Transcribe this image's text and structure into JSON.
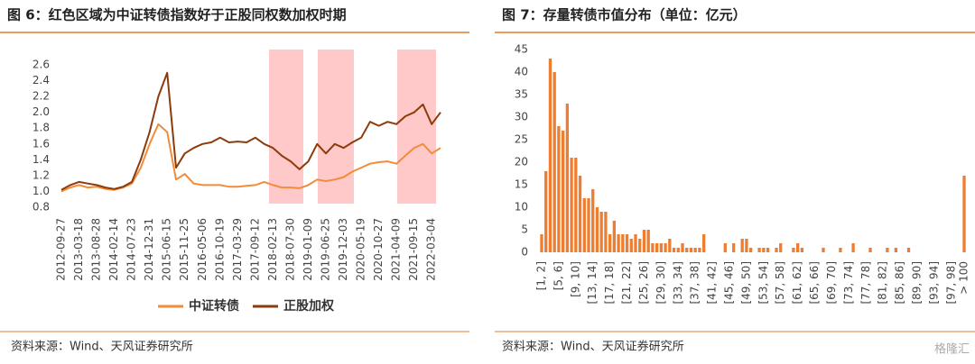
{
  "chart_data": [
    {
      "type": "line",
      "title": "图 6：红色区域为中证转债指数好于正股同权数加权时期",
      "source": "资料来源：Wind、天风证券研究所",
      "categories": [
        "2012-09-27",
        null,
        "2013-03-18",
        null,
        "2013-08-28",
        null,
        "2014-02-14",
        null,
        "2014-07-23",
        null,
        "2014-12-31",
        null,
        "2015-06-15",
        null,
        "2015-11-25",
        null,
        "2016-05-06",
        null,
        "2016-10-19",
        null,
        "2017-03-29",
        null,
        "2017-09-12",
        null,
        "2018-02-13",
        null,
        "2018-07-30",
        null,
        "2019-01-09",
        null,
        "2019-06-25",
        null,
        "2019-12-03",
        null,
        "2020-05-19",
        null,
        "2020-10-27",
        null,
        "2021-04-09",
        null,
        "2021-09-15",
        null,
        "2022-03-04",
        null
      ],
      "series": [
        {
          "name": "中证转债",
          "color": "#f28c3a",
          "values": [
            1.0,
            1.05,
            1.08,
            1.05,
            1.06,
            1.03,
            1.02,
            1.05,
            1.1,
            1.3,
            1.6,
            1.85,
            1.75,
            1.15,
            1.22,
            1.1,
            1.08,
            1.08,
            1.08,
            1.06,
            1.06,
            1.07,
            1.08,
            1.12,
            1.08,
            1.05,
            1.05,
            1.04,
            1.08,
            1.15,
            1.13,
            1.15,
            1.18,
            1.25,
            1.3,
            1.35,
            1.37,
            1.38,
            1.35,
            1.45,
            1.55,
            1.6,
            1.48,
            1.55
          ]
        },
        {
          "name": "正股加权",
          "color": "#8c3b0c",
          "values": [
            1.02,
            1.08,
            1.12,
            1.1,
            1.08,
            1.05,
            1.03,
            1.06,
            1.12,
            1.4,
            1.75,
            2.2,
            2.5,
            1.3,
            1.48,
            1.55,
            1.6,
            1.62,
            1.68,
            1.62,
            1.63,
            1.62,
            1.68,
            1.6,
            1.55,
            1.45,
            1.38,
            1.28,
            1.38,
            1.6,
            1.48,
            1.6,
            1.55,
            1.62,
            1.68,
            1.88,
            1.83,
            1.88,
            1.85,
            1.95,
            2.0,
            2.1,
            1.85,
            2.0
          ]
        }
      ],
      "ylim": [
        0.8,
        2.6
      ],
      "yticks": [
        {
          "value": 0.8,
          "label": "0.8"
        },
        {
          "value": 1,
          "label": "1.0"
        },
        1.2,
        1.4,
        1.6,
        1.8,
        {
          "value": 2,
          "label": "2.0"
        },
        2.2,
        2.4,
        2.6
      ],
      "legend": "bottom"
    },
    {
      "type": "bar",
      "title": "图 7：存量转债市值分布（单位：亿元）",
      "source": "资料来源：Wind、天风证券研究所",
      "color": "#ed7d31",
      "categories": [
        "[1, 2]",
        null,
        null,
        null,
        "[5, 6]",
        null,
        null,
        null,
        "[9, 10]",
        null,
        null,
        null,
        "[13, 14]",
        null,
        null,
        null,
        "[17, 18]",
        null,
        null,
        null,
        "[21, 22]",
        null,
        null,
        null,
        "[25, 26]",
        null,
        null,
        null,
        "[29, 30]",
        null,
        null,
        null,
        "[33, 34]",
        null,
        null,
        null,
        "[37, 38]",
        null,
        null,
        null,
        "[41, 42]",
        null,
        null,
        null,
        "[45, 46]",
        null,
        null,
        null,
        "[49, 50]",
        null,
        null,
        null,
        "[53, 54]",
        null,
        null,
        null,
        "[57, 58]",
        null,
        null,
        null,
        "[61, 62]",
        null,
        null,
        null,
        "[65, 66]",
        null,
        null,
        null,
        "[69, 70]",
        null,
        null,
        null,
        "[73, 74]",
        null,
        null,
        null,
        "[77, 78]",
        null,
        null,
        null,
        "[81, 82]",
        null,
        null,
        null,
        "[85, 86]",
        null,
        null,
        null,
        "[89, 90]",
        null,
        null,
        null,
        "[93, 94]",
        null,
        null,
        null,
        "[97, 98]",
        null,
        null,
        "> 100"
      ],
      "values": [
        4,
        18,
        43,
        40,
        28,
        27,
        33,
        21,
        21,
        17,
        12,
        12,
        14,
        10,
        9,
        9,
        4,
        7,
        4,
        4,
        4,
        3,
        4,
        3,
        5,
        5,
        2,
        2,
        2,
        2,
        3,
        1,
        1,
        2,
        1,
        1,
        1,
        1,
        4,
        0,
        0,
        0,
        0,
        2,
        0,
        2,
        0,
        3,
        3,
        1,
        0,
        1,
        1,
        1,
        0,
        1,
        2,
        0,
        0,
        1,
        2,
        1,
        0,
        0,
        0,
        0,
        1,
        0,
        0,
        0,
        1,
        0,
        0,
        2,
        0,
        0,
        0,
        1,
        0,
        0,
        0,
        1,
        0,
        1,
        0,
        0,
        1,
        0,
        0,
        0,
        0,
        0,
        0,
        0,
        0,
        0,
        0,
        0,
        0,
        17
      ],
      "ylim": [
        0,
        45
      ],
      "yticks": [
        0,
        5,
        10,
        15,
        20,
        25,
        30,
        35,
        40,
        45
      ]
    }
  ],
  "watermark": "格隆汇"
}
